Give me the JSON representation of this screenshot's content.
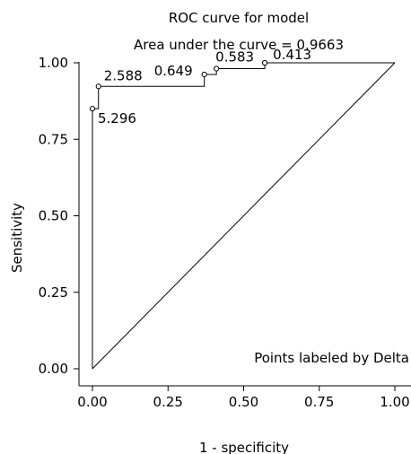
{
  "chart_data": {
    "type": "line",
    "title": "ROC curve for model",
    "subtitle": "Area under the curve = 0.9663",
    "xlabel": "1 - specificity",
    "ylabel": "Sensitivity",
    "note": "Points labeled by Delta",
    "xlim": [
      0,
      1
    ],
    "ylim": [
      0,
      1
    ],
    "x_ticks": [
      "0.00",
      "0.25",
      "0.50",
      "0.75",
      "1.00"
    ],
    "y_ticks": [
      "0.00",
      "0.25",
      "0.50",
      "0.75",
      "1.00"
    ],
    "grid": false,
    "roc_curve": {
      "x": [
        0.0,
        0.0,
        0.0,
        0.02,
        0.02,
        0.37,
        0.37,
        0.41,
        0.41,
        0.57,
        0.57,
        1.0
      ],
      "y": [
        0.0,
        0.85,
        0.85,
        0.85,
        0.923,
        0.923,
        0.962,
        0.962,
        0.981,
        0.981,
        1.0,
        1.0
      ]
    },
    "labeled_points": [
      {
        "label": "5.296",
        "x": 0.0,
        "y": 0.85
      },
      {
        "label": "2.588",
        "x": 0.02,
        "y": 0.923
      },
      {
        "label": "0.649",
        "x": 0.37,
        "y": 0.962
      },
      {
        "label": "0.583",
        "x": 0.41,
        "y": 0.981
      },
      {
        "label": "0.413",
        "x": 0.57,
        "y": 1.0
      }
    ],
    "reference_line": {
      "x": [
        0,
        1
      ],
      "y": [
        0,
        1
      ]
    }
  }
}
